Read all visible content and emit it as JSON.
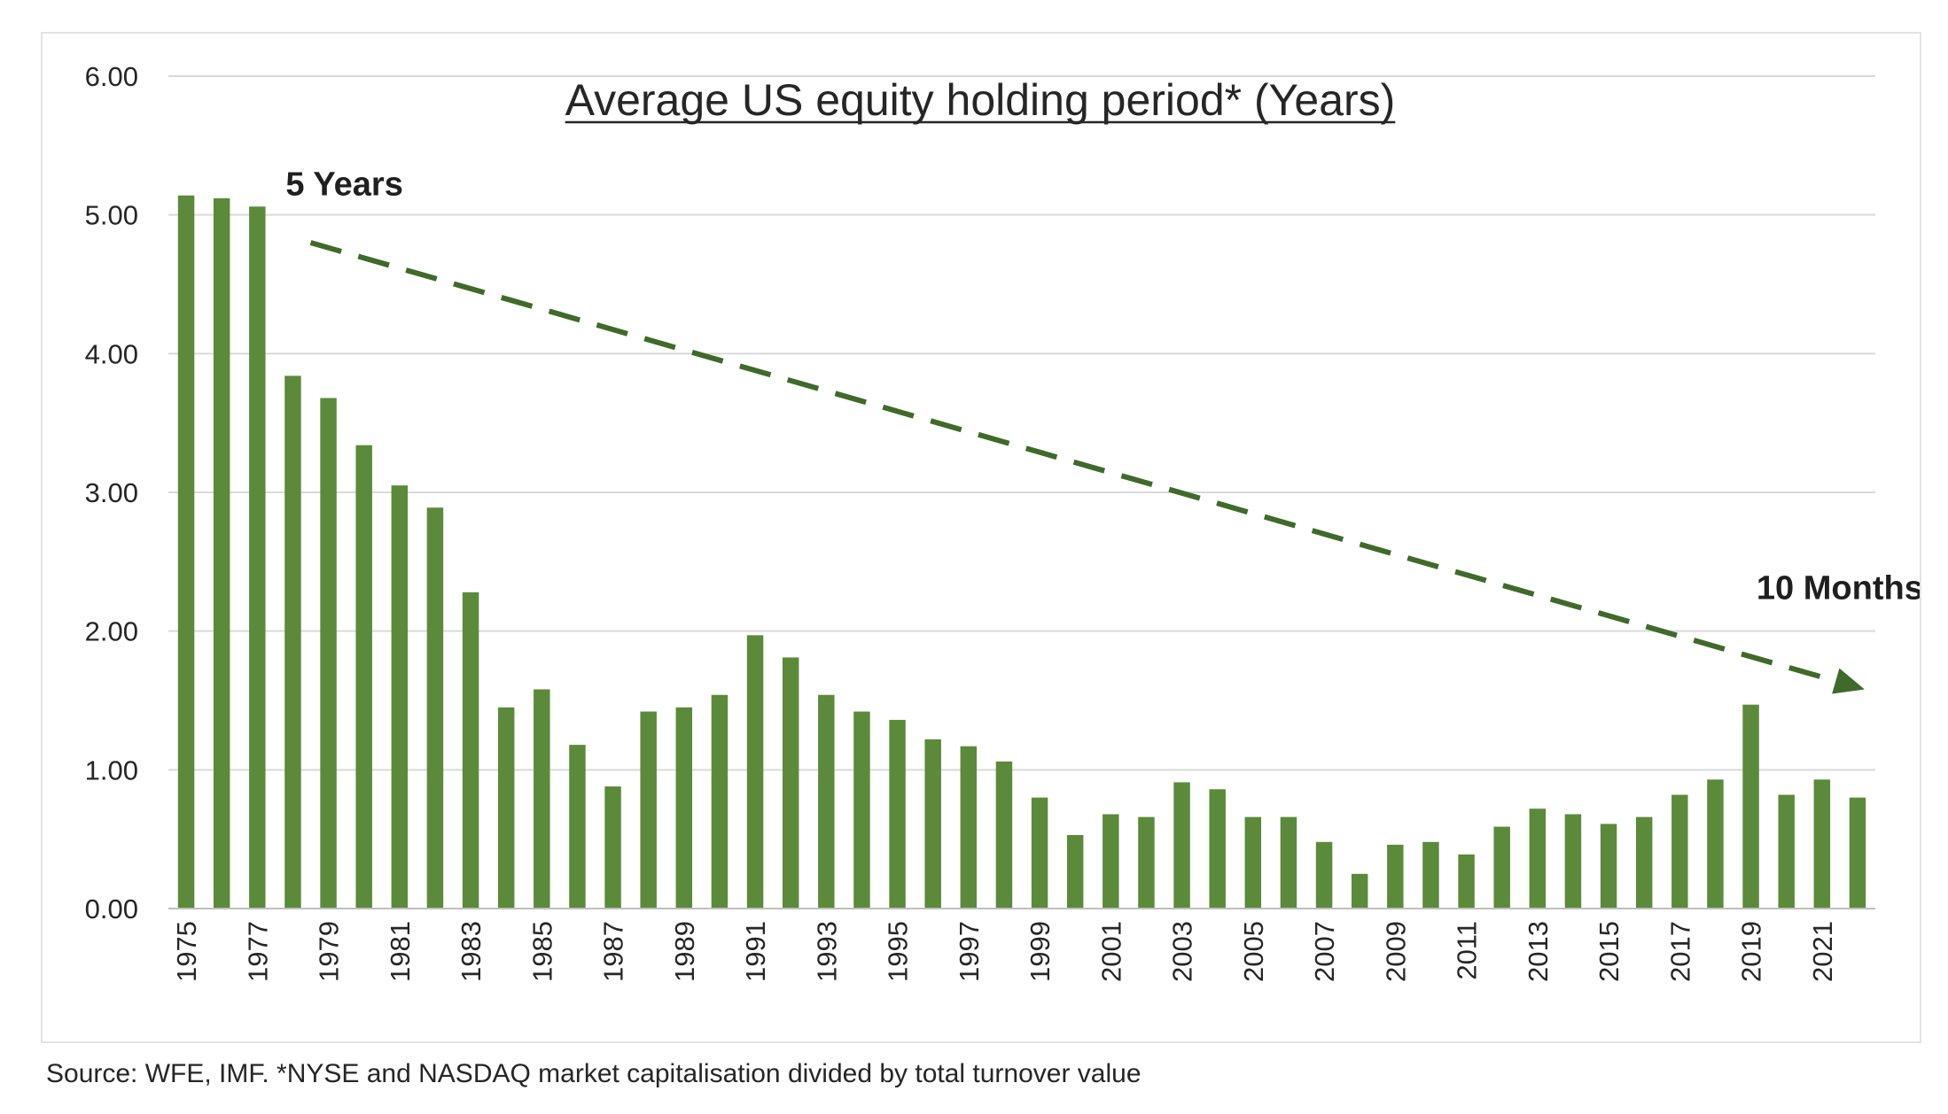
{
  "colors": {
    "bar": "#5b8a3a",
    "arrow": "#3f6a2a",
    "grid": "#d9d9d9",
    "text": "#262626"
  },
  "chart_data": {
    "type": "bar",
    "title": "Average US equity holding period* (Years)",
    "xlabel": "",
    "ylabel": "",
    "ylim": [
      0,
      6
    ],
    "grid": true,
    "y_ticks": [
      "0.00",
      "1.00",
      "2.00",
      "3.00",
      "4.00",
      "5.00",
      "6.00"
    ],
    "categories": [
      "1975",
      "1976",
      "1977",
      "1978",
      "1979",
      "1980",
      "1981",
      "1982",
      "1983",
      "1984",
      "1985",
      "1986",
      "1987",
      "1988",
      "1989",
      "1990",
      "1991",
      "1992",
      "1993",
      "1994",
      "1995",
      "1996",
      "1997",
      "1998",
      "1999",
      "2000",
      "2001",
      "2002",
      "2003",
      "2004",
      "2005",
      "2006",
      "2007",
      "2008",
      "2009",
      "2010",
      "2011",
      "2012",
      "2013",
      "2014",
      "2015",
      "2016",
      "2017",
      "2018",
      "2019",
      "2020",
      "2021",
      "2022"
    ],
    "x_tick_labels": [
      "1975",
      "",
      "1977",
      "",
      "1979",
      "",
      "1981",
      "",
      "1983",
      "",
      "1985",
      "",
      "1987",
      "",
      "1989",
      "",
      "1991",
      "",
      "1993",
      "",
      "1995",
      "",
      "1997",
      "",
      "1999",
      "",
      "2001",
      "",
      "2003",
      "",
      "2005",
      "",
      "2007",
      "",
      "2009",
      "",
      "2011",
      "",
      "2013",
      "",
      "2015",
      "",
      "2017",
      "",
      "2019",
      "",
      "2021",
      ""
    ],
    "values": [
      5.14,
      5.12,
      5.06,
      3.84,
      3.68,
      3.34,
      3.05,
      2.89,
      2.28,
      1.45,
      1.58,
      1.18,
      0.88,
      1.42,
      1.45,
      1.54,
      1.97,
      1.81,
      1.54,
      1.42,
      1.36,
      1.22,
      1.17,
      1.06,
      0.8,
      0.53,
      0.68,
      0.66,
      0.91,
      0.86,
      0.66,
      0.66,
      0.48,
      0.25,
      0.46,
      0.48,
      0.39,
      0.59,
      0.72,
      0.68,
      0.61,
      0.66,
      0.82,
      0.93,
      1.47,
      0.82,
      0.93,
      0.8
    ],
    "annotations": [
      {
        "text": "5 Years",
        "x": "1977.8",
        "y": 5.14
      },
      {
        "text": "10 Months",
        "x": "2021.5",
        "y": 2.23
      }
    ],
    "trend_arrow": {
      "from": {
        "x": 1978.5,
        "y": 4.8
      },
      "to": {
        "x": 2022.2,
        "y": 1.58
      }
    }
  },
  "source_note": "Source: WFE, IMF. *NYSE and NASDAQ market capitalisation divided by total turnover value"
}
